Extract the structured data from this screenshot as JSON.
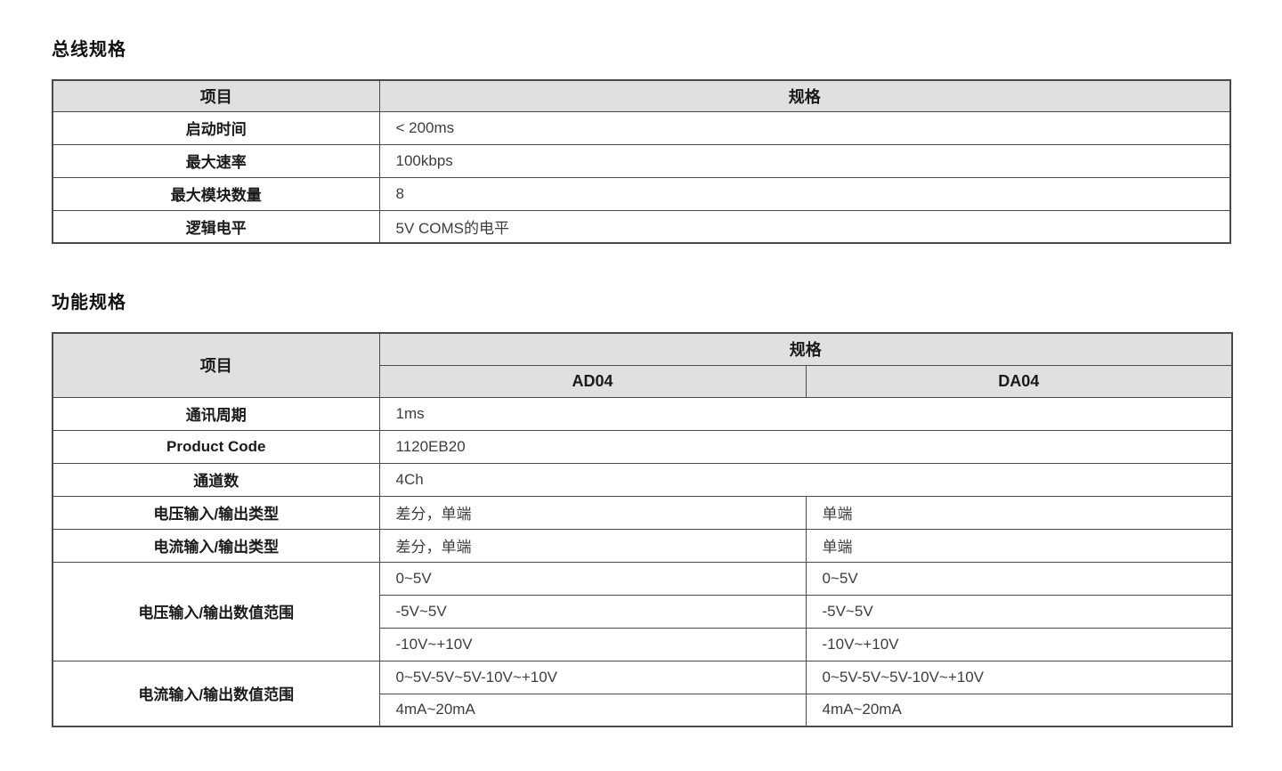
{
  "bus_table": {
    "title": "总线规格",
    "headers": {
      "item": "项目",
      "spec": "规格"
    },
    "rows": [
      {
        "item": "启动时间",
        "spec": "< 200ms"
      },
      {
        "item": "最大速率",
        "spec": "100kbps"
      },
      {
        "item": "最大模块数量",
        "spec": "8"
      },
      {
        "item": "逻辑电平",
        "spec": "5V COMS的电平"
      }
    ]
  },
  "function_table": {
    "title": "功能规格",
    "headers": {
      "item": "项目",
      "spec": "规格",
      "col_ad04": "AD04",
      "col_da04": "DA04"
    },
    "rows_merged": [
      {
        "item": "通讯周期",
        "value": "1ms"
      },
      {
        "item": "Product Code",
        "value": "1120EB20"
      },
      {
        "item": "通道数",
        "value": "4Ch"
      }
    ],
    "rows_split": [
      {
        "item": "电压输入/输出类型",
        "ad04": "差分，单端",
        "da04": "单端"
      },
      {
        "item": "电流输入/输出类型",
        "ad04": "差分，单端",
        "da04": "单端"
      }
    ],
    "voltage_range": {
      "item": "电压输入/输出数值范围",
      "rows": [
        {
          "ad04": "0~5V",
          "da04": "0~5V"
        },
        {
          "ad04": "-5V~5V",
          "da04": "-5V~5V"
        },
        {
          "ad04": "-10V~+10V",
          "da04": "-10V~+10V"
        }
      ]
    },
    "current_range": {
      "item": "电流输入/输出数值范围",
      "rows": [
        {
          "ad04": "0~5V-5V~5V-10V~+10V",
          "da04": "0~5V-5V~5V-10V~+10V"
        },
        {
          "ad04": "4mA~20mA",
          "da04": "4mA~20mA"
        }
      ]
    }
  }
}
